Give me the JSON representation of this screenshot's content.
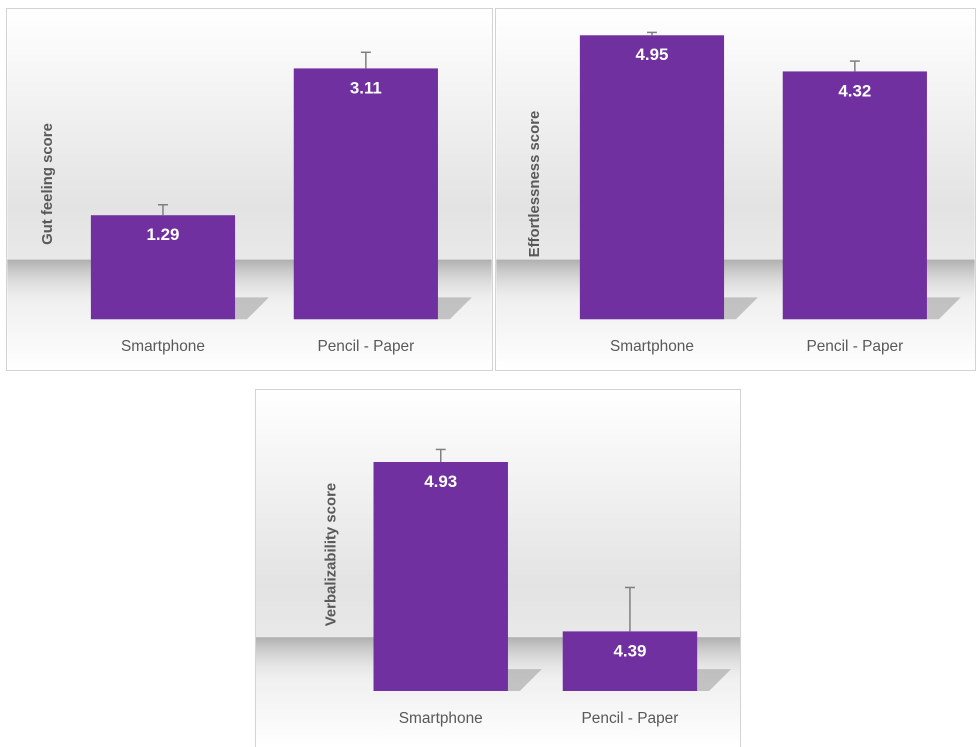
{
  "chart_data": [
    {
      "type": "bar",
      "categories": [
        "Smartphone",
        "Pencil - Paper"
      ],
      "values": [
        1.29,
        3.11
      ],
      "error": [
        0.13,
        0.2
      ],
      "data_labels": [
        "1.29",
        "3.11"
      ],
      "title": "",
      "xlabel": "",
      "ylabel": "Gut feeling score",
      "ylim": [
        0,
        3.6
      ],
      "bar_color": "#7030a0",
      "grid": false,
      "axis_lines": false
    },
    {
      "type": "bar",
      "categories": [
        "Smartphone",
        "Pencil - Paper"
      ],
      "values": [
        4.95,
        4.32
      ],
      "error": [
        0.05,
        0.18
      ],
      "data_labels": [
        "4.95",
        "4.32"
      ],
      "title": "",
      "xlabel": "",
      "ylabel": "Effortlessness score",
      "ylim": [
        0,
        5.2
      ],
      "bar_color": "#7030a0",
      "grid": false,
      "axis_lines": false
    },
    {
      "type": "bar",
      "categories": [
        "Smartphone",
        "Pencil - Paper"
      ],
      "values": [
        4.93,
        4.39
      ],
      "error": [
        0.04,
        0.14
      ],
      "data_labels": [
        "4.93",
        "4.39"
      ],
      "title": "",
      "xlabel": "",
      "ylabel": "Verbalizability score",
      "ylim": [
        4.2,
        5.0
      ],
      "bar_color": "#7030a0",
      "grid": false,
      "axis_lines": false
    }
  ]
}
